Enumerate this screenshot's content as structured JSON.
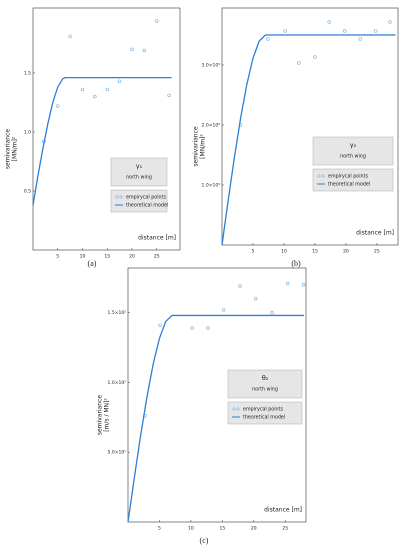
{
  "chart_data": [
    {
      "type": "scatter-line",
      "label": "(a)",
      "legend_title": "γ₁",
      "legend_subtitle": "north wing",
      "xlabel": "distance [m]",
      "ylabel": [
        "semivariance",
        "[MN/m]²"
      ],
      "xlim": [
        0,
        29.7
      ],
      "ylim": [
        0,
        2.05
      ],
      "xticks": [
        5,
        10,
        15,
        20,
        25
      ],
      "yticks": [
        0.5,
        {
          "value": 1,
          "label": "1.0"
        },
        1.5
      ],
      "series": [
        {
          "name": "empirycal points",
          "color": "#7fb8e8",
          "x": [
            2.2,
            5,
            7.5,
            10,
            12.5,
            15,
            17.5,
            20,
            22.5,
            25,
            27.5
          ],
          "values": [
            0.92,
            1.22,
            1.81,
            1.36,
            1.3,
            1.36,
            1.43,
            1.7,
            1.69,
            1.94,
            1.31
          ]
        },
        {
          "name": "theoretical model",
          "color": "#2b7fd6",
          "x": [
            0,
            1,
            2,
            3,
            4,
            5,
            6,
            6.5,
            28
          ],
          "values": [
            0.38,
            0.63,
            0.86,
            1.07,
            1.25,
            1.38,
            1.45,
            1.46,
            1.46
          ]
        }
      ]
    },
    {
      "type": "scatter-line",
      "label": "(b)",
      "legend_title": "γ₂",
      "legend_subtitle": "north wing",
      "xlabel": "distance [m]",
      "ylabel": [
        "semivariance",
        "[MN/m]²"
      ],
      "xlim": [
        0,
        28.4
      ],
      "ylim": [
        0,
        3950
      ],
      "xticks": [
        5,
        10,
        15,
        20,
        25
      ],
      "yticks": [
        {
          "value": 1000,
          "label": "1.0×10³"
        },
        {
          "value": 2000,
          "label": "2.0×10³"
        },
        {
          "value": 3000,
          "label": "3.0×10³"
        }
      ],
      "series": [
        {
          "name": "empirycal points",
          "color": "#7fb8e8",
          "x": [
            3,
            7.4,
            10.2,
            12.4,
            15,
            17.3,
            19.8,
            22.3,
            24.8,
            27.1
          ],
          "values": [
            2000,
            3433,
            3567,
            3033,
            3133,
            3717,
            3567,
            3433,
            3567,
            3717
          ]
        },
        {
          "name": "theoretical model",
          "color": "#2b7fd6",
          "x": [
            0,
            1,
            2,
            3,
            4,
            5,
            6,
            7,
            28
          ],
          "values": [
            0,
            745,
            1459,
            2112,
            2674,
            3112,
            3398,
            3500,
            3500
          ]
        }
      ]
    },
    {
      "type": "scatter-line",
      "label": "(c)",
      "legend_title": "θ₂",
      "legend_subtitle": "north wing",
      "xlabel": "distance [m]",
      "ylabel": [
        "semivariance",
        "[m/s / MN]²"
      ],
      "xlim": [
        0,
        28.3
      ],
      "ylim": [
        0,
        182
      ],
      "xticks": [
        5,
        10,
        15,
        20,
        25
      ],
      "yticks": [
        {
          "value": 50,
          "label": "5.0×10¹"
        },
        {
          "value": 100,
          "label": "1.0×10²"
        },
        {
          "value": 150,
          "label": "1.5×10²"
        }
      ],
      "series": [
        {
          "name": "empirycal points",
          "color": "#7fb8e8",
          "x": [
            2.7,
            5.1,
            10.2,
            12.7,
            15.2,
            17.8,
            20.3,
            22.9,
            25.4,
            27.9
          ],
          "values": [
            76,
            141,
            139,
            139,
            152,
            169,
            160,
            150,
            171,
            170
          ]
        },
        {
          "name": "theoretical model",
          "color": "#2b7fd6",
          "x": [
            0,
            1,
            2,
            3,
            4,
            5,
            6,
            7,
            28
          ],
          "values": [
            0,
            31.5,
            61.7,
            89.3,
            113.1,
            131.6,
            143.7,
            148,
            148
          ]
        }
      ]
    }
  ]
}
